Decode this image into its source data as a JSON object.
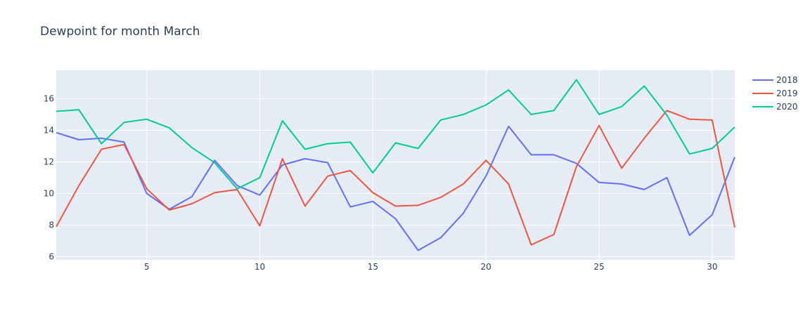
{
  "chart_data": {
    "type": "line",
    "title": "Dewpoint for month March",
    "xlabel": "",
    "ylabel": "",
    "xlim": [
      1,
      31
    ],
    "ylim": [
      5.8,
      17.8
    ],
    "x_ticks": [
      5,
      10,
      15,
      20,
      25,
      30
    ],
    "y_ticks": [
      6,
      8,
      10,
      12,
      14,
      16
    ],
    "grid": true,
    "legend_position": "top-right",
    "x": [
      1,
      2,
      3,
      4,
      5,
      6,
      7,
      8,
      9,
      10,
      11,
      12,
      13,
      14,
      15,
      16,
      17,
      18,
      19,
      20,
      21,
      22,
      23,
      24,
      25,
      26,
      27,
      28,
      29,
      30,
      31
    ],
    "series": [
      {
        "name": "2018",
        "color": "#636efa",
        "values": [
          13.85,
          13.4,
          13.5,
          13.25,
          10.0,
          9.0,
          9.8,
          12.1,
          10.5,
          9.9,
          11.8,
          12.2,
          11.95,
          9.15,
          9.5,
          8.4,
          6.4,
          7.2,
          8.75,
          11.1,
          14.25,
          12.45,
          12.45,
          11.9,
          10.7,
          10.6,
          10.25,
          11.0,
          7.35,
          8.65,
          12.3
        ]
      },
      {
        "name": "2019",
        "color": "#ef553b",
        "values": [
          7.9,
          10.5,
          12.8,
          13.1,
          10.3,
          8.95,
          9.35,
          10.05,
          10.25,
          7.95,
          12.2,
          9.2,
          11.1,
          11.45,
          10.05,
          9.2,
          9.25,
          9.75,
          10.6,
          12.1,
          10.6,
          6.75,
          7.4,
          11.7,
          14.3,
          11.6,
          13.5,
          15.25,
          14.7,
          14.65,
          7.85
        ]
      },
      {
        "name": "2020",
        "color": "#00cc96",
        "values": [
          15.2,
          15.3,
          13.15,
          14.5,
          14.7,
          14.15,
          12.9,
          11.95,
          10.3,
          11.0,
          14.6,
          12.8,
          13.15,
          13.25,
          11.3,
          13.2,
          12.85,
          14.65,
          15.0,
          15.6,
          16.55,
          15.0,
          15.25,
          17.2,
          15.0,
          15.5,
          16.8,
          14.95,
          12.5,
          12.85,
          14.2
        ]
      }
    ]
  }
}
